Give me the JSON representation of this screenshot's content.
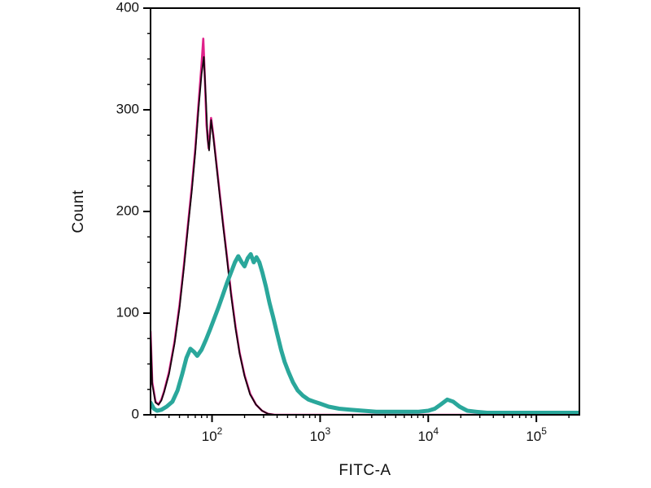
{
  "chart_data": {
    "type": "line",
    "title": "",
    "xlabel": "FITC-A",
    "ylabel": "Count",
    "x_scale": "log10",
    "xlim": [
      27,
      250000
    ],
    "ylim": [
      0,
      400
    ],
    "yticks": [
      0,
      100,
      200,
      300,
      400
    ],
    "y_minor_step": 25,
    "xticks": [
      {
        "value": 100,
        "label_base": "10",
        "label_exp": "2"
      },
      {
        "value": 1000,
        "label_base": "10",
        "label_exp": "3"
      },
      {
        "value": 10000,
        "label_base": "10",
        "label_exp": "4"
      },
      {
        "value": 100000,
        "label_base": "10",
        "label_exp": "5"
      }
    ],
    "grid": false,
    "legend": "none",
    "plot_border_color": "#000000",
    "series": [
      {
        "name": "control-magenta",
        "color": "#e0218a",
        "stroke_width": 2.6,
        "points": [
          [
            27,
            82
          ],
          [
            28,
            32
          ],
          [
            30,
            13
          ],
          [
            32,
            10
          ],
          [
            34,
            15
          ],
          [
            36,
            23
          ],
          [
            40,
            42
          ],
          [
            45,
            72
          ],
          [
            50,
            108
          ],
          [
            55,
            148
          ],
          [
            60,
            188
          ],
          [
            65,
            224
          ],
          [
            70,
            262
          ],
          [
            75,
            305
          ],
          [
            80,
            345
          ],
          [
            83,
            370
          ],
          [
            86,
            330
          ],
          [
            89,
            285
          ],
          [
            93,
            262
          ],
          [
            98,
            292
          ],
          [
            103,
            274
          ],
          [
            110,
            247
          ],
          [
            118,
            217
          ],
          [
            127,
            187
          ],
          [
            137,
            157
          ],
          [
            150,
            120
          ],
          [
            165,
            87
          ],
          [
            180,
            61
          ],
          [
            200,
            39
          ],
          [
            225,
            21
          ],
          [
            255,
            10
          ],
          [
            290,
            4
          ],
          [
            330,
            1
          ],
          [
            380,
            0
          ],
          [
            500,
            0
          ],
          [
            250000,
            0
          ]
        ]
      },
      {
        "name": "control-black",
        "color": "#16060e",
        "stroke_width": 1.8,
        "points": [
          [
            27,
            80
          ],
          [
            28,
            30
          ],
          [
            30,
            12
          ],
          [
            32,
            10
          ],
          [
            34,
            14
          ],
          [
            36,
            22
          ],
          [
            40,
            40
          ],
          [
            45,
            70
          ],
          [
            50,
            105
          ],
          [
            55,
            145
          ],
          [
            60,
            185
          ],
          [
            65,
            220
          ],
          [
            70,
            258
          ],
          [
            75,
            300
          ],
          [
            80,
            335
          ],
          [
            84,
            352
          ],
          [
            88,
            308
          ],
          [
            91,
            272
          ],
          [
            94,
            260
          ],
          [
            98,
            290
          ],
          [
            103,
            272
          ],
          [
            110,
            245
          ],
          [
            118,
            215
          ],
          [
            127,
            185
          ],
          [
            137,
            155
          ],
          [
            150,
            118
          ],
          [
            165,
            85
          ],
          [
            180,
            60
          ],
          [
            200,
            38
          ],
          [
            225,
            20
          ],
          [
            255,
            10
          ],
          [
            290,
            4
          ],
          [
            330,
            1
          ],
          [
            380,
            0
          ],
          [
            500,
            0
          ],
          [
            250000,
            0
          ]
        ]
      },
      {
        "name": "stained-teal",
        "color": "#2aa79b",
        "stroke_width": 5,
        "points": [
          [
            27,
            12
          ],
          [
            29,
            6
          ],
          [
            31,
            4
          ],
          [
            34,
            5
          ],
          [
            38,
            8
          ],
          [
            43,
            13
          ],
          [
            48,
            24
          ],
          [
            53,
            40
          ],
          [
            58,
            56
          ],
          [
            63,
            65
          ],
          [
            68,
            62
          ],
          [
            73,
            58
          ],
          [
            80,
            64
          ],
          [
            88,
            74
          ],
          [
            96,
            84
          ],
          [
            105,
            95
          ],
          [
            115,
            106
          ],
          [
            126,
            118
          ],
          [
            138,
            130
          ],
          [
            150,
            140
          ],
          [
            163,
            150
          ],
          [
            175,
            156
          ],
          [
            188,
            150
          ],
          [
            200,
            146
          ],
          [
            214,
            154
          ],
          [
            228,
            158
          ],
          [
            243,
            150
          ],
          [
            258,
            155
          ],
          [
            274,
            150
          ],
          [
            292,
            140
          ],
          [
            315,
            126
          ],
          [
            340,
            110
          ],
          [
            368,
            96
          ],
          [
            400,
            80
          ],
          [
            435,
            64
          ],
          [
            470,
            52
          ],
          [
            510,
            42
          ],
          [
            560,
            32
          ],
          [
            620,
            24
          ],
          [
            690,
            19
          ],
          [
            780,
            15
          ],
          [
            880,
            13
          ],
          [
            1000,
            11
          ],
          [
            1200,
            8
          ],
          [
            1500,
            6
          ],
          [
            1900,
            5
          ],
          [
            2500,
            4
          ],
          [
            3300,
            3
          ],
          [
            4500,
            3
          ],
          [
            6000,
            3
          ],
          [
            8000,
            3
          ],
          [
            10000,
            4
          ],
          [
            11500,
            6
          ],
          [
            13000,
            10
          ],
          [
            15000,
            15
          ],
          [
            17000,
            13
          ],
          [
            19500,
            8
          ],
          [
            23000,
            4
          ],
          [
            28000,
            3
          ],
          [
            35000,
            2
          ],
          [
            50000,
            2
          ],
          [
            80000,
            2
          ],
          [
            120000,
            2
          ],
          [
            200000,
            2
          ],
          [
            250000,
            2
          ]
        ]
      }
    ]
  }
}
